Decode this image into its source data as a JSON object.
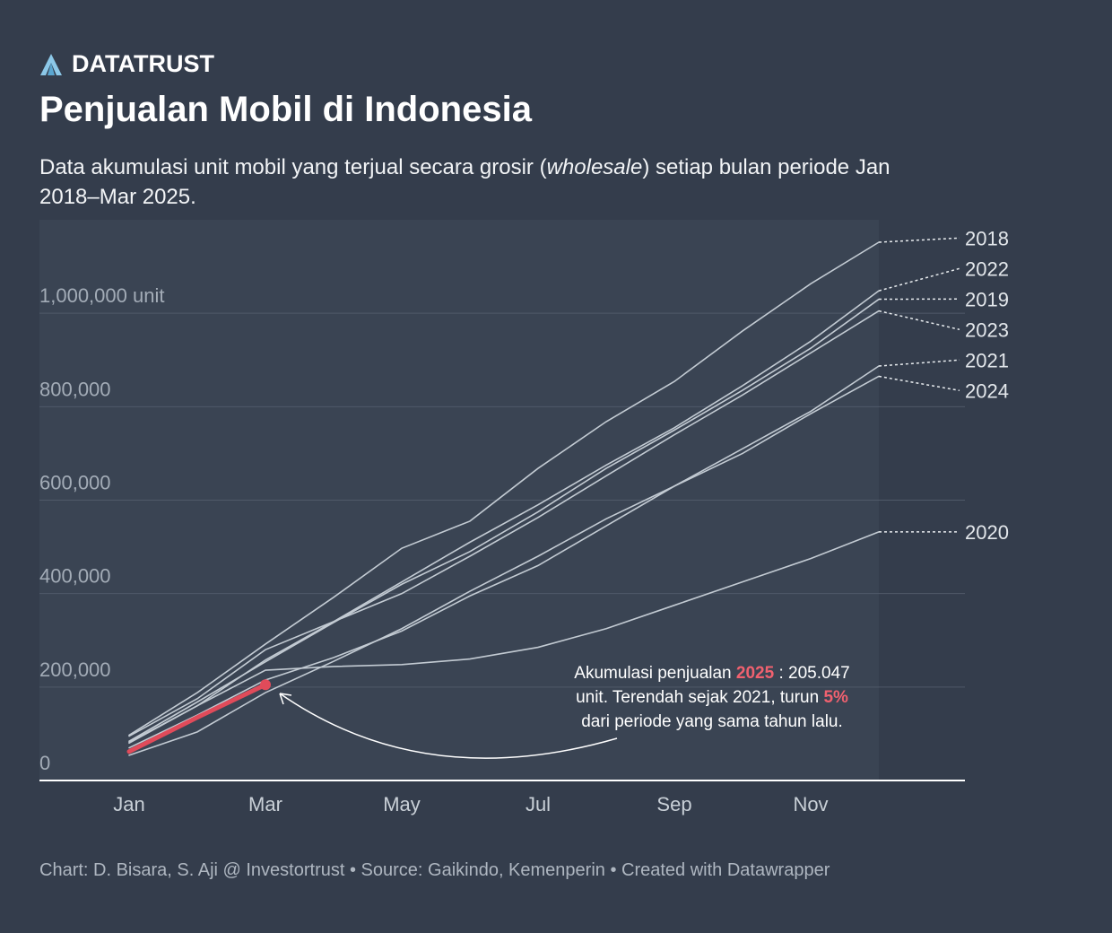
{
  "brand": "DATATRUST",
  "chart_data": {
    "type": "line",
    "title": "Penjualan Mobil di Indonesia",
    "subtitle": [
      "Data akumulasi unit mobil yang terjual secara grosir (",
      "wholesale",
      ") setiap bulan periode Jan 2018–Mar 2025."
    ],
    "categories": [
      "Jan",
      null,
      "Mar",
      null,
      "May",
      null,
      "Jul",
      null,
      "Sep",
      null,
      "Nov",
      null
    ],
    "ylim": [
      0,
      1200000
    ],
    "yticks": [
      0,
      {
        "value": 200000,
        "label": "200,000"
      },
      {
        "value": 400000,
        "label": "400,000"
      },
      {
        "value": 600000,
        "label": "600,000"
      },
      {
        "value": 800000,
        "label": "800,000"
      },
      {
        "value": 1000000,
        "label": "1,000,000 unit"
      }
    ],
    "grid": true,
    "series": [
      {
        "name": "2018",
        "color": "#c3cbd3",
        "values": [
          97000,
          188000,
          292000,
          392000,
          497000,
          555000,
          668000,
          768000,
          854000,
          962000,
          1063000,
          1152000
        ]
      },
      {
        "name": "2022",
        "color": "#c3cbd3",
        "values": [
          82000,
          160000,
          258000,
          340000,
          425000,
          510000,
          590000,
          675000,
          755000,
          845000,
          940000,
          1048000
        ]
      },
      {
        "name": "2019",
        "color": "#c3cbd3",
        "values": [
          84000,
          168000,
          254000,
          338000,
          420000,
          490000,
          575000,
          668000,
          750000,
          835000,
          925000,
          1030000
        ]
      },
      {
        "name": "2023",
        "color": "#c3cbd3",
        "values": [
          95000,
          175000,
          280000,
          340000,
          400000,
          480000,
          563000,
          652000,
          740000,
          825000,
          915000,
          1005000
        ]
      },
      {
        "name": "2021",
        "color": "#c3cbd3",
        "values": [
          54000,
          104000,
          188000,
          255000,
          325000,
          405000,
          480000,
          560000,
          630000,
          710000,
          790000,
          887000
        ]
      },
      {
        "name": "2024",
        "color": "#c3cbd3",
        "values": [
          70000,
          140000,
          215000,
          263000,
          320000,
          395000,
          460000,
          545000,
          630000,
          700000,
          785000,
          865000
        ]
      },
      {
        "name": "2020",
        "color": "#c3cbd3",
        "values": [
          80000,
          160000,
          236000,
          244000,
          248000,
          260000,
          285000,
          325000,
          375000,
          425000,
          475000,
          532000
        ]
      },
      {
        "name": "2025",
        "color": "#e04b5a",
        "values": [
          62000,
          135000,
          205000,
          null,
          null,
          null,
          null,
          null,
          null,
          null,
          null,
          null
        ]
      }
    ],
    "annotation": [
      [
        "Akumulasi penjualan ",
        "2025",
        " : 205.047"
      ],
      [
        "unit. Terendah sejak 2021, turun ",
        "5%"
      ],
      [
        "dari periode yang sama tahun lalu."
      ]
    ],
    "footer": "Chart: D. Bisara, S. Aji @ Investortrust • Source: Gaikindo, Kemenperin • Created with Datawrapper"
  }
}
